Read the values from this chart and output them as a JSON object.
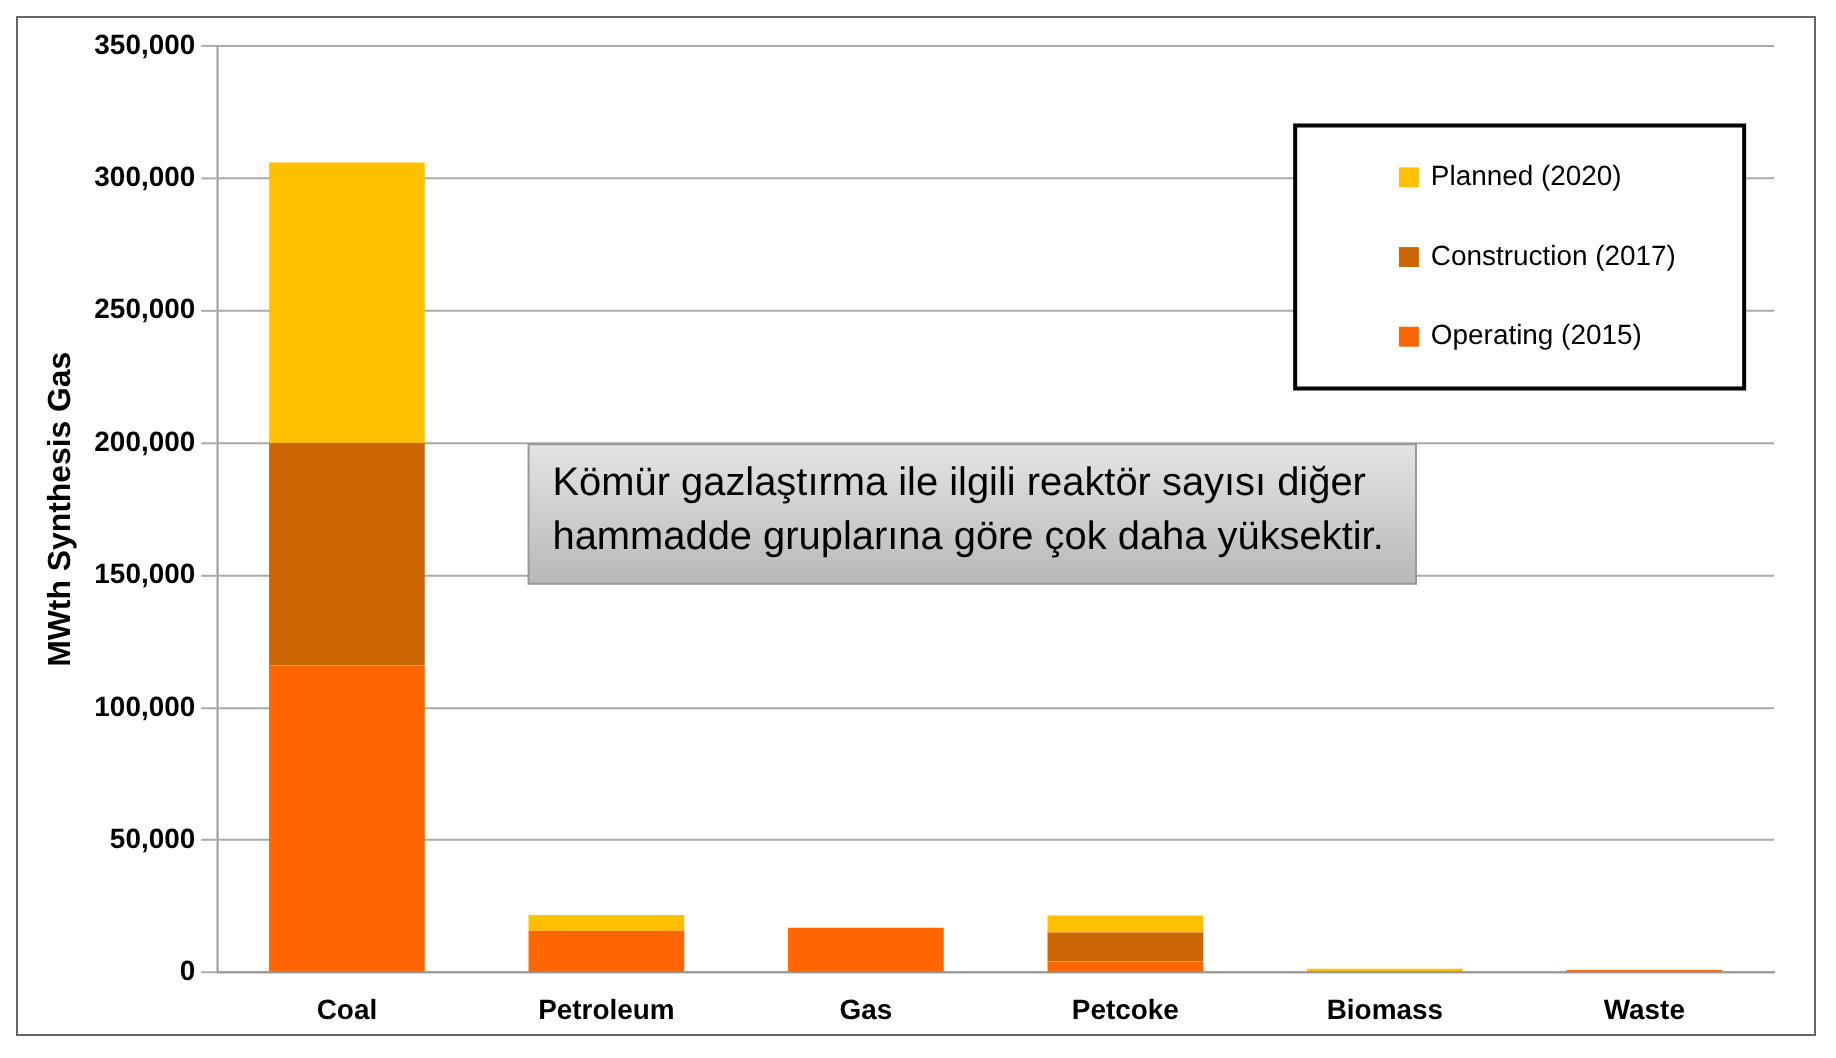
{
  "chart_data": {
    "type": "bar",
    "stacked": true,
    "ylabel": "MWth Synthesis Gas",
    "categories": [
      "Coal",
      "Petroleum",
      "Gas",
      "Petcoke",
      "Biomass",
      "Waste"
    ],
    "series": [
      {
        "name": "Operating (2015)",
        "color": "#ff6600",
        "values": [
          116000,
          15800,
          17000,
          4200,
          500,
          1000
        ]
      },
      {
        "name": "Construction (2017)",
        "color": "#cc6600",
        "values": [
          84000,
          0,
          0,
          11000,
          0,
          0
        ]
      },
      {
        "name": "Planned (2020)",
        "color": "#ffc000",
        "values": [
          106000,
          6000,
          0,
          6400,
          1000,
          0
        ]
      }
    ],
    "ylim": [
      0,
      350000
    ],
    "yticks": [
      0,
      {
        "value": 50000,
        "label": "50,000"
      },
      {
        "value": 100000,
        "label": "100,000"
      },
      {
        "value": 150000,
        "label": "150,000"
      },
      {
        "value": 200000,
        "label": "200,000"
      },
      {
        "value": 250000,
        "label": "250,000"
      },
      {
        "value": 300000,
        "label": "300,000"
      },
      {
        "value": 350000,
        "label": "350,000"
      }
    ],
    "grid": "y",
    "legend": "top right",
    "annotations": [
      "Kömür gazlaştırma ile ilgili reaktör sayısı diğer hammadde gruplarına göre çok daha yüksektir."
    ]
  }
}
